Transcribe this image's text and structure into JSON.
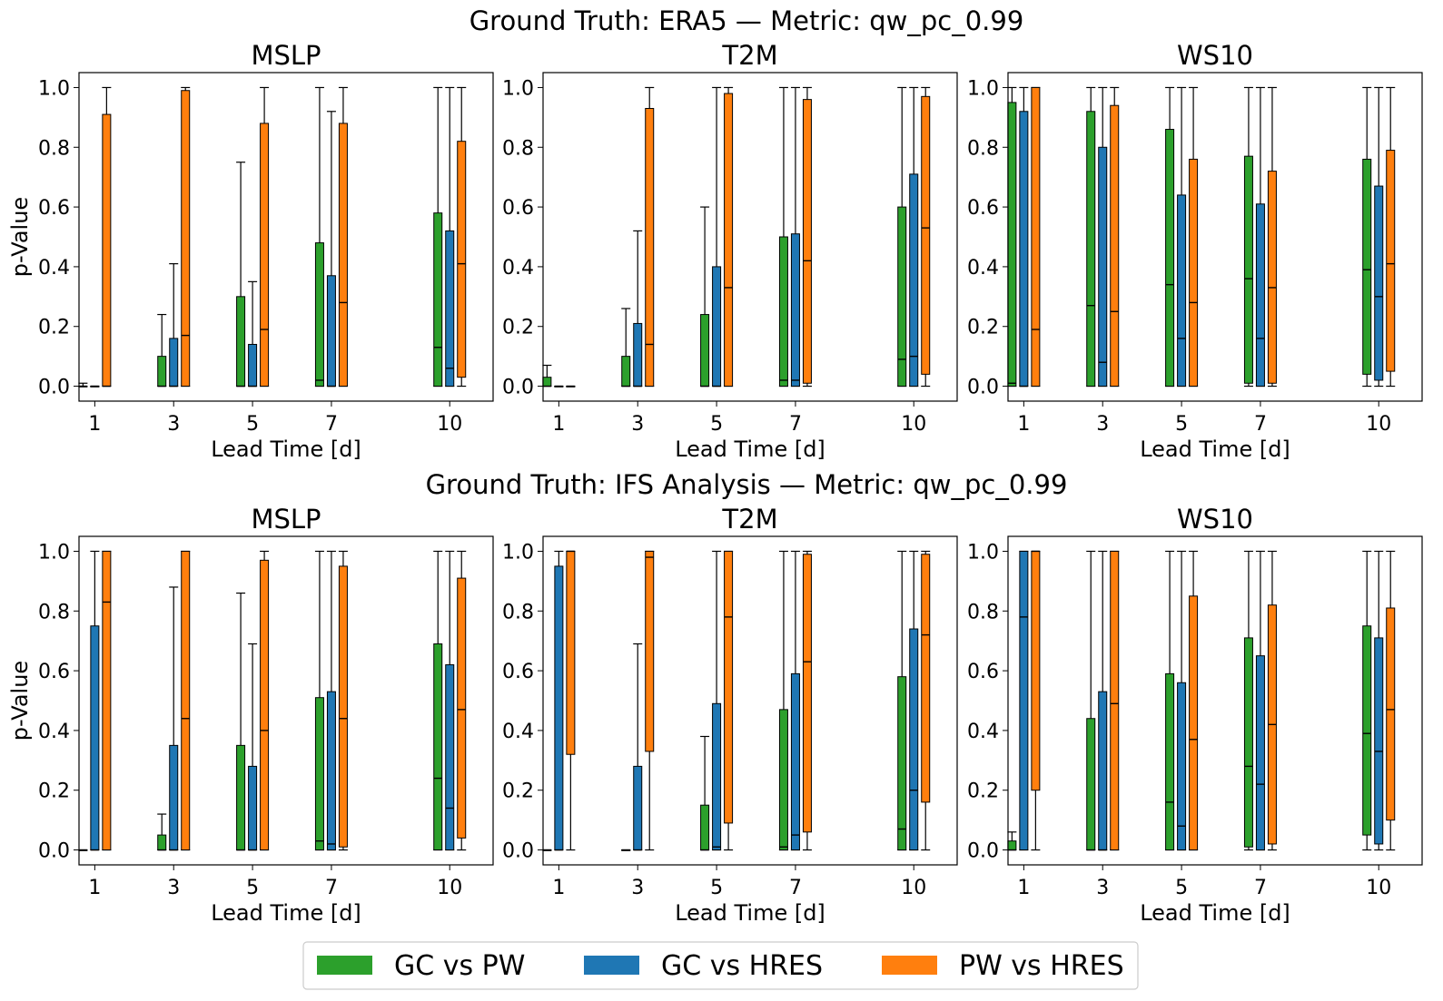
{
  "figure": {
    "row_titles": [
      "Ground Truth: ERA5 — Metric: qw_pc_0.99",
      "Ground Truth: IFS Analysis — Metric: qw_pc_0.99"
    ]
  },
  "legend": [
    {
      "label": "GC vs PW",
      "color": "#2ca02c"
    },
    {
      "label": "GC vs HRES",
      "color": "#1f77b4"
    },
    {
      "label": "PW vs HRES",
      "color": "#ff7f0e"
    }
  ],
  "chart_data": [
    {
      "type": "box",
      "row": 0,
      "col": 0,
      "title": "MSLP",
      "xlabel": "Lead Time [d]",
      "ylabel": "p-Value",
      "x": [
        1,
        3,
        5,
        7,
        10
      ],
      "ylim": [
        -0.05,
        1.05
      ],
      "yticks": [
        "0.0",
        "0.2",
        "0.4",
        "0.6",
        "0.8",
        "1.0"
      ],
      "series": [
        {
          "name": "GC vs PW",
          "boxes": [
            [
              0,
              0,
              0,
              0,
              0.01
            ],
            [
              0,
              0,
              0,
              0.1,
              0.24
            ],
            [
              0,
              0,
              0,
              0.3,
              0.75
            ],
            [
              0,
              0,
              0.02,
              0.48,
              1.0
            ],
            [
              0,
              0,
              0.13,
              0.58,
              1.0
            ]
          ]
        },
        {
          "name": "GC vs HRES",
          "boxes": [
            [
              0,
              0,
              0,
              0,
              0
            ],
            [
              0,
              0,
              0,
              0.16,
              0.41
            ],
            [
              0,
              0,
              0,
              0.14,
              0.35
            ],
            [
              0,
              0,
              0,
              0.37,
              0.92
            ],
            [
              0,
              0,
              0.06,
              0.52,
              1.0
            ]
          ]
        },
        {
          "name": "PW vs HRES",
          "boxes": [
            [
              0,
              0,
              0.0,
              0.91,
              1.0
            ],
            [
              0,
              0,
              0.17,
              0.99,
              1.0
            ],
            [
              0,
              0,
              0.19,
              0.88,
              1.0
            ],
            [
              0,
              0,
              0.28,
              0.88,
              1.0
            ],
            [
              0,
              0.03,
              0.41,
              0.82,
              1.0
            ]
          ]
        }
      ]
    },
    {
      "type": "box",
      "row": 0,
      "col": 1,
      "title": "T2M",
      "xlabel": "Lead Time [d]",
      "ylabel": "",
      "x": [
        1,
        3,
        5,
        7,
        10
      ],
      "ylim": [
        -0.05,
        1.05
      ],
      "yticks": [
        "0.0",
        "0.2",
        "0.4",
        "0.6",
        "0.8",
        "1.0"
      ],
      "series": [
        {
          "name": "GC vs PW",
          "boxes": [
            [
              0,
              0,
              0,
              0.03,
              0.07
            ],
            [
              0,
              0,
              0,
              0.1,
              0.26
            ],
            [
              0,
              0,
              0,
              0.24,
              0.6
            ],
            [
              0,
              0,
              0.02,
              0.5,
              1.0
            ],
            [
              0,
              0,
              0.09,
              0.6,
              1.0
            ]
          ]
        },
        {
          "name": "GC vs HRES",
          "boxes": [
            [
              0,
              0,
              0,
              0,
              0
            ],
            [
              0,
              0,
              0,
              0.21,
              0.52
            ],
            [
              0,
              0,
              0,
              0.4,
              1.0
            ],
            [
              0,
              0,
              0.02,
              0.51,
              1.0
            ],
            [
              0,
              0,
              0.1,
              0.71,
              1.0
            ]
          ]
        },
        {
          "name": "PW vs HRES",
          "boxes": [
            [
              0,
              0,
              0,
              0,
              0
            ],
            [
              0,
              0,
              0.14,
              0.93,
              1.0
            ],
            [
              0,
              0,
              0.33,
              0.98,
              1.0
            ],
            [
              0,
              0.01,
              0.42,
              0.96,
              1.0
            ],
            [
              0,
              0.04,
              0.53,
              0.97,
              1.0
            ]
          ]
        }
      ]
    },
    {
      "type": "box",
      "row": 0,
      "col": 2,
      "title": "WS10",
      "xlabel": "Lead Time [d]",
      "ylabel": "",
      "x": [
        1,
        3,
        5,
        7,
        10
      ],
      "ylim": [
        -0.05,
        1.05
      ],
      "yticks": [
        "0.0",
        "0.2",
        "0.4",
        "0.6",
        "0.8",
        "1.0"
      ],
      "series": [
        {
          "name": "GC vs PW",
          "boxes": [
            [
              0,
              0,
              0.01,
              0.95,
              1.0
            ],
            [
              0,
              0,
              0.27,
              0.92,
              1.0
            ],
            [
              0,
              0,
              0.34,
              0.86,
              1.0
            ],
            [
              0,
              0.01,
              0.36,
              0.77,
              1.0
            ],
            [
              0,
              0.04,
              0.39,
              0.76,
              1.0
            ]
          ]
        },
        {
          "name": "GC vs HRES",
          "boxes": [
            [
              0,
              0,
              0.0,
              0.92,
              1.0
            ],
            [
              0,
              0,
              0.08,
              0.8,
              1.0
            ],
            [
              0,
              0,
              0.16,
              0.64,
              1.0
            ],
            [
              0,
              0,
              0.16,
              0.61,
              1.0
            ],
            [
              0,
              0.02,
              0.3,
              0.67,
              1.0
            ]
          ]
        },
        {
          "name": "PW vs HRES",
          "boxes": [
            [
              0,
              0,
              0.19,
              1.0,
              1.0
            ],
            [
              0,
              0,
              0.25,
              0.94,
              1.0
            ],
            [
              0,
              0,
              0.28,
              0.76,
              1.0
            ],
            [
              0,
              0.01,
              0.33,
              0.72,
              1.0
            ],
            [
              0,
              0.05,
              0.41,
              0.79,
              1.0
            ]
          ]
        }
      ]
    },
    {
      "type": "box",
      "row": 1,
      "col": 0,
      "title": "MSLP",
      "xlabel": "Lead Time [d]",
      "ylabel": "p-Value",
      "x": [
        1,
        3,
        5,
        7,
        10
      ],
      "ylim": [
        -0.05,
        1.05
      ],
      "yticks": [
        "0.0",
        "0.2",
        "0.4",
        "0.6",
        "0.8",
        "1.0"
      ],
      "series": [
        {
          "name": "GC vs PW",
          "boxes": [
            [
              0,
              0,
              0,
              0,
              0
            ],
            [
              0,
              0,
              0,
              0.05,
              0.12
            ],
            [
              0,
              0,
              0,
              0.35,
              0.86
            ],
            [
              0,
              0,
              0.03,
              0.51,
              1.0
            ],
            [
              0,
              0,
              0.24,
              0.69,
              1.0
            ]
          ]
        },
        {
          "name": "GC vs HRES",
          "boxes": [
            [
              0,
              0,
              0,
              0.75,
              1.0
            ],
            [
              0,
              0,
              0,
              0.35,
              0.88
            ],
            [
              0,
              0,
              0,
              0.28,
              0.69
            ],
            [
              0,
              0,
              0.02,
              0.53,
              1.0
            ],
            [
              0,
              0,
              0.14,
              0.62,
              1.0
            ]
          ]
        },
        {
          "name": "PW vs HRES",
          "boxes": [
            [
              0,
              0,
              0.83,
              1.0,
              1.0
            ],
            [
              0,
              0,
              0.44,
              1.0,
              1.0
            ],
            [
              0,
              0,
              0.4,
              0.97,
              1.0
            ],
            [
              0,
              0.01,
              0.44,
              0.95,
              1.0
            ],
            [
              0,
              0.04,
              0.47,
              0.91,
              1.0
            ]
          ]
        }
      ]
    },
    {
      "type": "box",
      "row": 1,
      "col": 1,
      "title": "T2M",
      "xlabel": "Lead Time [d]",
      "ylabel": "",
      "x": [
        1,
        3,
        5,
        7,
        10
      ],
      "ylim": [
        -0.05,
        1.05
      ],
      "yticks": [
        "0.0",
        "0.2",
        "0.4",
        "0.6",
        "0.8",
        "1.0"
      ],
      "series": [
        {
          "name": "GC vs PW",
          "boxes": [
            [
              0,
              0,
              0,
              0,
              0
            ],
            [
              0,
              0,
              0,
              0,
              0
            ],
            [
              0,
              0,
              0,
              0.15,
              0.38
            ],
            [
              0,
              0,
              0.01,
              0.47,
              1.0
            ],
            [
              0,
              0,
              0.07,
              0.58,
              1.0
            ]
          ]
        },
        {
          "name": "GC vs HRES",
          "boxes": [
            [
              0,
              0,
              0,
              0.95,
              1.0
            ],
            [
              0,
              0,
              0,
              0.28,
              0.69
            ],
            [
              0,
              0,
              0.01,
              0.49,
              1.0
            ],
            [
              0,
              0,
              0.05,
              0.59,
              1.0
            ],
            [
              0,
              0,
              0.2,
              0.74,
              1.0
            ]
          ]
        },
        {
          "name": "PW vs HRES",
          "boxes": [
            [
              0,
              0.32,
              1.0,
              1.0,
              1.0
            ],
            [
              0,
              0.33,
              0.98,
              1.0,
              1.0
            ],
            [
              0,
              0.09,
              0.78,
              1.0,
              1.0
            ],
            [
              0,
              0.06,
              0.63,
              0.99,
              1.0
            ],
            [
              0,
              0.16,
              0.72,
              0.99,
              1.0
            ]
          ]
        }
      ]
    },
    {
      "type": "box",
      "row": 1,
      "col": 2,
      "title": "WS10",
      "xlabel": "Lead Time [d]",
      "ylabel": "",
      "x": [
        1,
        3,
        5,
        7,
        10
      ],
      "ylim": [
        -0.05,
        1.05
      ],
      "yticks": [
        "0.0",
        "0.2",
        "0.4",
        "0.6",
        "0.8",
        "1.0"
      ],
      "series": [
        {
          "name": "GC vs PW",
          "boxes": [
            [
              0,
              0,
              0,
              0.03,
              0.06
            ],
            [
              0,
              0,
              0,
              0.44,
              1.0
            ],
            [
              0,
              0,
              0.16,
              0.59,
              1.0
            ],
            [
              0,
              0.01,
              0.28,
              0.71,
              1.0
            ],
            [
              0,
              0.05,
              0.39,
              0.75,
              1.0
            ]
          ]
        },
        {
          "name": "GC vs HRES",
          "boxes": [
            [
              0,
              0,
              0.78,
              1.0,
              1.0
            ],
            [
              0,
              0,
              0,
              0.53,
              1.0
            ],
            [
              0,
              0,
              0.08,
              0.56,
              1.0
            ],
            [
              0,
              0,
              0.22,
              0.65,
              1.0
            ],
            [
              0,
              0.02,
              0.33,
              0.71,
              1.0
            ]
          ]
        },
        {
          "name": "PW vs HRES",
          "boxes": [
            [
              0,
              0.2,
              1.0,
              1.0,
              1.0
            ],
            [
              0,
              0,
              0.49,
              1.0,
              1.0
            ],
            [
              0,
              0,
              0.37,
              0.85,
              1.0
            ],
            [
              0,
              0.02,
              0.42,
              0.82,
              1.0
            ],
            [
              0,
              0.1,
              0.47,
              0.81,
              1.0
            ]
          ]
        }
      ]
    }
  ]
}
